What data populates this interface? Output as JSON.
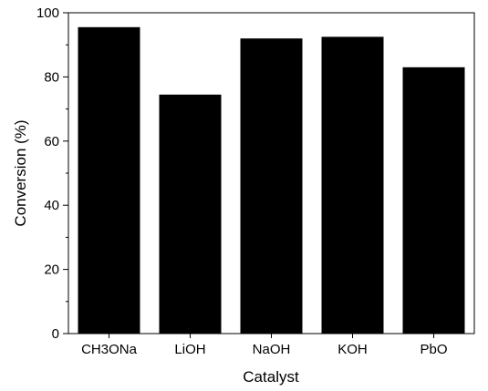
{
  "chart_data": {
    "type": "bar",
    "title": "",
    "xlabel": "Catalyst",
    "ylabel": "Conversion (%)",
    "categories": [
      "CH3ONa",
      "LiOH",
      "NaOH",
      "KOH",
      "PbO"
    ],
    "values": [
      95.5,
      74.5,
      92,
      92.5,
      83
    ],
    "ylim": [
      0,
      100
    ],
    "yticks": [
      0,
      20,
      40,
      60,
      80,
      100
    ],
    "yticks_labels": [
      "0",
      "20",
      "40",
      "60",
      "80",
      "100"
    ],
    "minor_yticks": true,
    "grid": false,
    "legend": "none",
    "bar_color": "#000000",
    "axis_color": "#000000"
  }
}
